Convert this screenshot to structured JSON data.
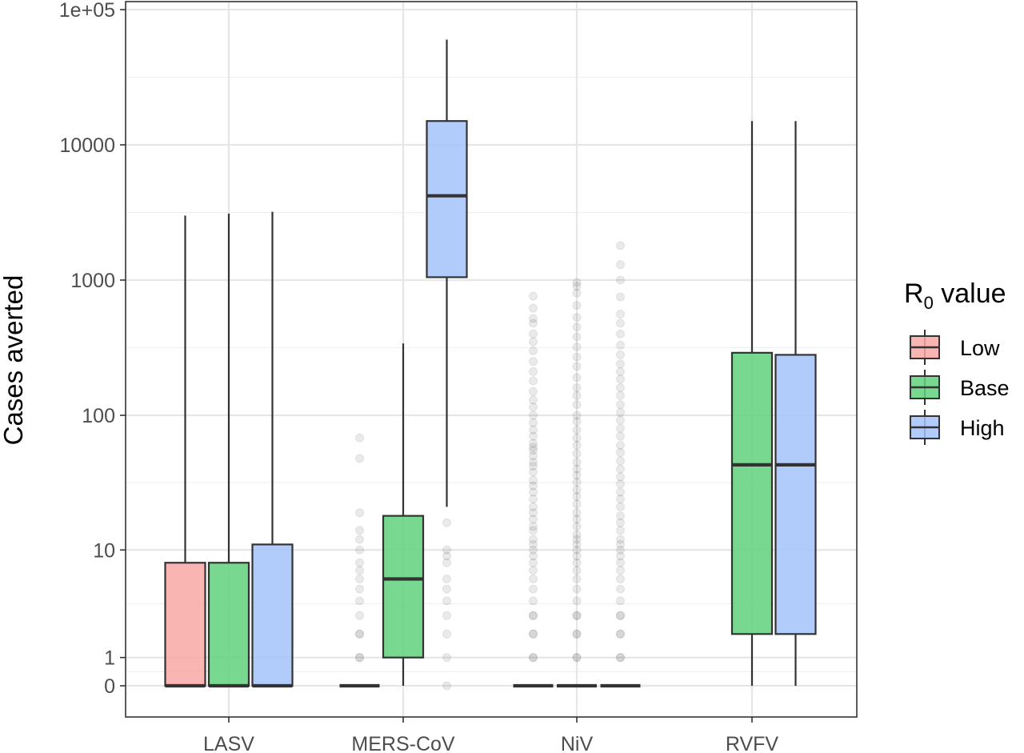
{
  "chart_data": {
    "type": "box",
    "title": "",
    "xlabel": "",
    "ylabel": "Cases averted",
    "y_scale": "pseudo-log",
    "y_ticks": [
      0,
      1,
      10,
      100,
      1000,
      10000,
      100000
    ],
    "y_tick_labels": [
      "0",
      "1",
      "10",
      "100",
      "1000",
      "10000",
      "1e+05"
    ],
    "ylim": [
      0,
      100000
    ],
    "categories": [
      "LASV",
      "MERS-CoV",
      "NiV",
      "RVFV"
    ],
    "grid": true,
    "legend": {
      "title_main": "R",
      "title_sub": "0",
      "title_rest": " value",
      "position": "right",
      "entries": [
        {
          "label": "Low",
          "color": "#f8a8a3"
        },
        {
          "label": "Base",
          "color": "#62d17b"
        },
        {
          "label": "High",
          "color": "#a3c3fa"
        }
      ]
    },
    "series": [
      {
        "name": "Low",
        "color": "#f8a8a3",
        "boxes": [
          {
            "category": "LASV",
            "min": 0,
            "q1": 0,
            "median": 0,
            "q3": 8,
            "max": 3000,
            "outliers": []
          },
          {
            "category": "MERS-CoV",
            "min": 0,
            "q1": 0,
            "median": 0,
            "q3": 0,
            "max": 0,
            "outliers": [
              1,
              1,
              2,
              2,
              3,
              4,
              5,
              6,
              7,
              8,
              10,
              12,
              14,
              19,
              48,
              68
            ]
          },
          {
            "category": "NiV",
            "min": 0,
            "q1": 0,
            "median": 0,
            "q3": 0,
            "max": 0,
            "outliers": [
              1,
              1,
              2,
              2,
              3,
              3,
              4,
              5,
              6,
              7,
              8,
              9,
              10,
              11,
              12,
              14,
              15,
              17,
              19,
              21,
              24,
              27,
              30,
              33,
              38,
              42,
              45,
              50,
              55,
              58,
              62,
              70,
              78,
              88,
              100,
              115,
              130,
              150,
              180,
              210,
              250,
              300,
              350,
              400,
              480,
              520,
              620,
              760
            ]
          }
        ]
      },
      {
        "name": "Base",
        "color": "#62d17b",
        "boxes": [
          {
            "category": "LASV",
            "min": 0,
            "q1": 0,
            "median": 0,
            "q3": 8,
            "max": 3100,
            "outliers": []
          },
          {
            "category": "MERS-CoV",
            "min": 0,
            "q1": 1,
            "median": 6,
            "q3": 18,
            "max": 340,
            "outliers": []
          },
          {
            "category": "NiV",
            "min": 0,
            "q1": 0,
            "median": 0,
            "q3": 0,
            "max": 0,
            "outliers": [
              1,
              1,
              2,
              2,
              3,
              3,
              4,
              5,
              6,
              7,
              8,
              9,
              10,
              11,
              12,
              13,
              15,
              17,
              19,
              22,
              25,
              28,
              32,
              36,
              40,
              45,
              52,
              60,
              68,
              78,
              90,
              100,
              120,
              140,
              160,
              190,
              230,
              270,
              320,
              380,
              450,
              530,
              650,
              800,
              900,
              960
            ]
          },
          {
            "category": "RVFV",
            "min": 0,
            "q1": 2,
            "median": 43,
            "q3": 290,
            "max": 15000,
            "outliers": []
          }
        ]
      },
      {
        "name": "High",
        "color": "#a3c3fa",
        "boxes": [
          {
            "category": "LASV",
            "min": 0,
            "q1": 0,
            "median": 0,
            "q3": 11,
            "max": 3200,
            "outliers": []
          },
          {
            "category": "MERS-CoV",
            "min": 21,
            "q1": 1050,
            "median": 4200,
            "q3": 15000,
            "max": 60000,
            "outliers": [
              0,
              1,
              2,
              3,
              4,
              5,
              6,
              8,
              9,
              10,
              16
            ]
          },
          {
            "category": "NiV",
            "min": 0,
            "q1": 0,
            "median": 0,
            "q3": 0,
            "max": 0,
            "outliers": [
              1,
              1,
              2,
              2,
              3,
              3,
              4,
              5,
              6,
              7,
              8,
              9,
              10,
              11,
              12,
              14,
              16,
              18,
              21,
              24,
              27,
              31,
              35,
              40,
              46,
              53,
              60,
              70,
              80,
              92,
              105,
              120,
              140,
              160,
              185,
              210,
              240,
              280,
              330,
              400,
              480,
              560,
              750,
              1000,
              1300,
              1800
            ]
          },
          {
            "category": "RVFV",
            "min": 0,
            "q1": 2,
            "median": 43,
            "q3": 280,
            "max": 15000,
            "outliers": []
          }
        ]
      }
    ]
  }
}
